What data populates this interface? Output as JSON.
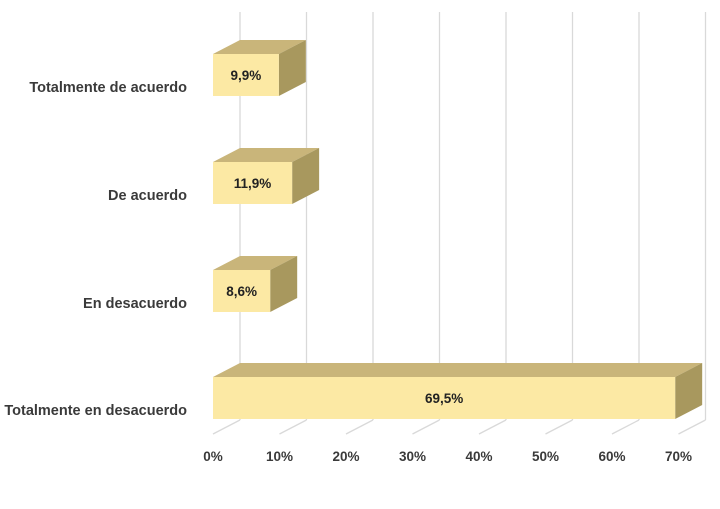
{
  "chart_data": {
    "type": "bar",
    "orientation": "horizontal",
    "style": "3d",
    "categories": [
      "Totalmente de acuerdo",
      "De acuerdo",
      "En desacuerdo",
      "Totalmente en desacuerdo"
    ],
    "values": [
      9.9,
      11.9,
      8.6,
      69.5
    ],
    "data_labels": [
      "9,9%",
      "11,9%",
      "8,6%",
      "69,5%"
    ],
    "xlim": [
      0,
      70
    ],
    "xticks": [
      0,
      10,
      20,
      30,
      40,
      50,
      60,
      70
    ],
    "xtick_labels": [
      "0%",
      "10%",
      "20%",
      "30%",
      "40%",
      "50%",
      "60%",
      "70%"
    ],
    "grid": true,
    "legend": "none",
    "colors": {
      "bar_front": "#FCE9A4",
      "bar_top": "#C9B57A",
      "bar_side": "#A8985E",
      "grid": "#d9d9d9"
    }
  }
}
